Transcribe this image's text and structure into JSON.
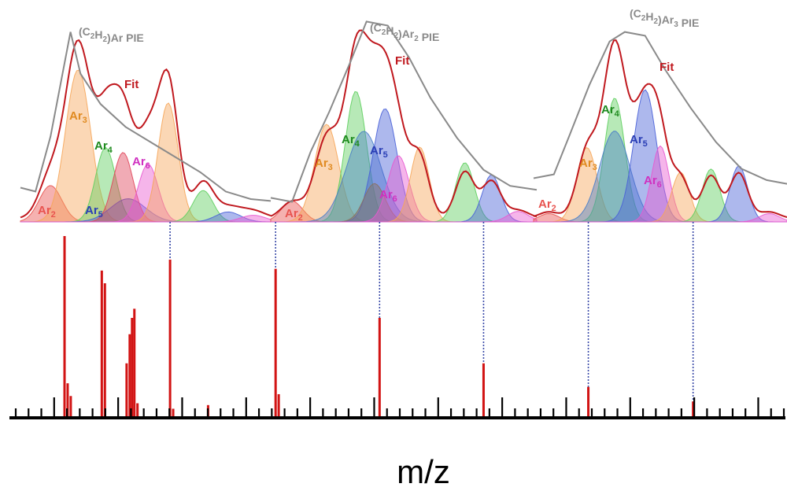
{
  "chart_data": {
    "type": "composite",
    "xlabel": "m/z",
    "panels": [
      {
        "pie_prefix": "(C",
        "pie_sub1": "2",
        "pie_mid": "H",
        "pie_sub2": "2",
        "pie_suffix": ")Ar",
        "pie_sub3": "",
        "pie_end": " PIE",
        "fit_label": "Fit",
        "components": [
          {
            "label": "Ar",
            "sub": "2",
            "color": "#e8534f",
            "text_color": "#e8534f",
            "center": 0.12,
            "width": 0.045,
            "height": 0.22
          },
          {
            "label": "Ar",
            "sub": "3",
            "color": "#f6a65a",
            "text_color": "#e08a20",
            "center": 0.23,
            "width": 0.05,
            "height": 0.92
          },
          {
            "label": "Ar",
            "sub": "4",
            "color": "#5fcf5f",
            "text_color": "#1e8a1e",
            "center": 0.34,
            "width": 0.04,
            "height": 0.45
          },
          {
            "label": "Ar",
            "sub": "5",
            "color": "#4a62d8",
            "text_color": "#2a3eb5",
            "center": 0.43,
            "width": 0.07,
            "height": 0.14
          },
          {
            "label": "",
            "sub": "",
            "color": "#e0455a",
            "text_color": "#e0455a",
            "center": 0.41,
            "width": 0.04,
            "height": 0.42
          },
          {
            "label": "Ar",
            "sub": "6",
            "color": "#e85ad0",
            "text_color": "#d030c0",
            "center": 0.51,
            "width": 0.04,
            "height": 0.35
          },
          {
            "label": "",
            "sub": "",
            "color": "#f6a65a",
            "text_color": "#e08a20",
            "center": 0.59,
            "width": 0.04,
            "height": 0.72
          },
          {
            "label": "",
            "sub": "",
            "color": "#5fcf5f",
            "text_color": "#1e8a1e",
            "center": 0.73,
            "width": 0.04,
            "height": 0.19
          },
          {
            "label": "",
            "sub": "",
            "color": "#4a62d8",
            "text_color": "#2a3eb5",
            "center": 0.83,
            "width": 0.05,
            "height": 0.06
          },
          {
            "label": "",
            "sub": "",
            "color": "#e85ad0",
            "text_color": "#d030c0",
            "center": 0.93,
            "width": 0.05,
            "height": 0.04
          }
        ]
      },
      {
        "pie_prefix": "(C",
        "pie_sub1": "2",
        "pie_mid": "H",
        "pie_sub2": "2",
        "pie_suffix": ")Ar",
        "pie_sub3": "2",
        "pie_end": " PIE",
        "fit_label": "Fit",
        "components": [
          {
            "label": "Ar",
            "sub": "2",
            "color": "#e8534f",
            "text_color": "#e8534f",
            "center": 0.08,
            "width": 0.04,
            "height": 0.12
          },
          {
            "label": "Ar",
            "sub": "3",
            "color": "#f6a65a",
            "text_color": "#e08a20",
            "center": 0.21,
            "width": 0.045,
            "height": 0.56
          },
          {
            "label": "Ar",
            "sub": "4",
            "color": "#5fcf5f",
            "text_color": "#1e8a1e",
            "center": 0.32,
            "width": 0.04,
            "height": 0.75
          },
          {
            "label": "",
            "sub": "",
            "color": "#4a7ec8",
            "text_color": "#2a3eb5",
            "center": 0.35,
            "width": 0.065,
            "height": 0.52
          },
          {
            "label": "Ar",
            "sub": "5",
            "color": "#4a62d8",
            "text_color": "#2a3eb5",
            "center": 0.43,
            "width": 0.045,
            "height": 0.65
          },
          {
            "label": "",
            "sub": "",
            "color": "#8a7060",
            "text_color": "#555",
            "center": 0.39,
            "width": 0.04,
            "height": 0.22
          },
          {
            "label": "Ar",
            "sub": "6",
            "color": "#e85ad0",
            "text_color": "#d030c0",
            "center": 0.48,
            "width": 0.04,
            "height": 0.38
          },
          {
            "label": "",
            "sub": "",
            "color": "#f6a65a",
            "text_color": "#e08a20",
            "center": 0.56,
            "width": 0.035,
            "height": 0.43
          },
          {
            "label": "",
            "sub": "",
            "color": "#5fcf5f",
            "text_color": "#1e8a1e",
            "center": 0.73,
            "width": 0.035,
            "height": 0.34
          },
          {
            "label": "",
            "sub": "",
            "color": "#4a62d8",
            "text_color": "#2a3eb5",
            "center": 0.83,
            "width": 0.035,
            "height": 0.27
          },
          {
            "label": "",
            "sub": "",
            "color": "#e85ad0",
            "text_color": "#d030c0",
            "center": 0.93,
            "width": 0.04,
            "height": 0.06
          }
        ]
      },
      {
        "pie_prefix": "(C",
        "pie_sub1": "2",
        "pie_mid": "H",
        "pie_sub2": "2",
        "pie_suffix": ")Ar",
        "pie_sub3": "3",
        "pie_end": " PIE",
        "fit_label": "Fit",
        "components": [
          {
            "label": "Ar",
            "sub": "2",
            "color": "#e8534f",
            "text_color": "#e8534f",
            "center": 0.06,
            "width": 0.04,
            "height": 0.05
          },
          {
            "label": "Ar",
            "sub": "3",
            "color": "#f6a65a",
            "text_color": "#e08a20",
            "center": 0.21,
            "width": 0.04,
            "height": 0.45
          },
          {
            "label": "Ar",
            "sub": "4",
            "color": "#5fcf5f",
            "text_color": "#1e8a1e",
            "center": 0.32,
            "width": 0.04,
            "height": 0.75
          },
          {
            "label": "",
            "sub": "",
            "color": "#4a7ec8",
            "text_color": "#2a3eb5",
            "center": 0.32,
            "width": 0.06,
            "height": 0.55
          },
          {
            "label": "Ar",
            "sub": "5",
            "color": "#4a62d8",
            "text_color": "#2a3eb5",
            "center": 0.44,
            "width": 0.045,
            "height": 0.8
          },
          {
            "label": "Ar",
            "sub": "6",
            "color": "#e85ad0",
            "text_color": "#d030c0",
            "center": 0.5,
            "width": 0.035,
            "height": 0.46
          },
          {
            "label": "",
            "sub": "",
            "color": "#f6a65a",
            "text_color": "#e08a20",
            "center": 0.58,
            "width": 0.035,
            "height": 0.3
          },
          {
            "label": "",
            "sub": "",
            "color": "#5fcf5f",
            "text_color": "#1e8a1e",
            "center": 0.7,
            "width": 0.035,
            "height": 0.32
          },
          {
            "label": "",
            "sub": "",
            "color": "#4a62d8",
            "text_color": "#2a3eb5",
            "center": 0.81,
            "width": 0.035,
            "height": 0.34
          },
          {
            "label": "",
            "sub": "",
            "color": "#e85ad0",
            "text_color": "#d030c0",
            "center": 0.93,
            "width": 0.04,
            "height": 0.05
          }
        ]
      }
    ],
    "spectrum_peaks": [
      {
        "mz": 0.071,
        "intensity": 1.0
      },
      {
        "mz": 0.075,
        "intensity": 0.19
      },
      {
        "mz": 0.079,
        "intensity": 0.12
      },
      {
        "mz": 0.119,
        "intensity": 0.81
      },
      {
        "mz": 0.123,
        "intensity": 0.74
      },
      {
        "mz": 0.151,
        "intensity": 0.3
      },
      {
        "mz": 0.155,
        "intensity": 0.46
      },
      {
        "mz": 0.158,
        "intensity": 0.55
      },
      {
        "mz": 0.161,
        "intensity": 0.6
      },
      {
        "mz": 0.165,
        "intensity": 0.08
      },
      {
        "mz": 0.207,
        "intensity": 0.87
      },
      {
        "mz": 0.211,
        "intensity": 0.05
      },
      {
        "mz": 0.256,
        "intensity": 0.07
      },
      {
        "mz": 0.343,
        "intensity": 0.82
      },
      {
        "mz": 0.347,
        "intensity": 0.13
      },
      {
        "mz": 0.477,
        "intensity": 0.55
      },
      {
        "mz": 0.611,
        "intensity": 0.3
      },
      {
        "mz": 0.746,
        "intensity": 0.17
      },
      {
        "mz": 0.881,
        "intensity": 0.09
      }
    ],
    "guide_lines": [
      0.207,
      0.343,
      0.477,
      0.611,
      0.746,
      0.881
    ]
  }
}
